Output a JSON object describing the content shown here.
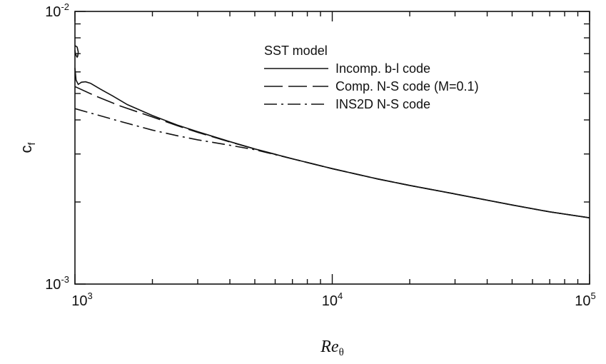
{
  "chart_data": {
    "type": "line",
    "title": "",
    "xlabel": {
      "main": "Re",
      "sub": "θ"
    },
    "ylabel": {
      "main": "c",
      "sub": "f"
    },
    "xscale": "log",
    "yscale": "log",
    "xlim": [
      1000,
      100000
    ],
    "ylim": [
      0.001,
      0.01
    ],
    "x_tick_labels": [
      {
        "value": 1000,
        "base": "10",
        "exp": "3"
      },
      {
        "value": 10000,
        "base": "10",
        "exp": "4"
      },
      {
        "value": 100000,
        "base": "10",
        "exp": "5"
      }
    ],
    "y_tick_labels": [
      {
        "value": 0.001,
        "base": "10",
        "exp": "-3"
      },
      {
        "value": 0.01,
        "base": "10",
        "exp": "-2"
      }
    ],
    "legend": {
      "title": "SST model",
      "placement": "top-center"
    },
    "series": [
      {
        "name": "Incomp. b-l code",
        "dash": "solid",
        "x": [
          1000,
          1010,
          1030,
          1060,
          1100,
          1150,
          1250,
          1400,
          1600,
          2000,
          2500,
          3000,
          4000,
          5000,
          7000,
          10000,
          15000,
          20000,
          30000,
          50000,
          70000,
          100000
        ],
        "y": [
          0.0062,
          0.0056,
          0.0054,
          0.0055,
          0.00552,
          0.00545,
          0.0052,
          0.0049,
          0.00455,
          0.00415,
          0.00383,
          0.00362,
          0.00333,
          0.00313,
          0.00288,
          0.00265,
          0.00243,
          0.0023,
          0.00214,
          0.00195,
          0.00184,
          0.00175
        ]
      },
      {
        "name": "Comp. N-S code (M=0.1)",
        "dash": "long-dash",
        "x": [
          1000,
          1200,
          1500,
          2000,
          2500,
          3000,
          4000,
          5000,
          7000,
          10000,
          15000,
          20000,
          30000,
          50000,
          70000,
          100000
        ],
        "y": [
          0.0053,
          0.0049,
          0.0045,
          0.0041,
          0.00381,
          0.0036,
          0.00332,
          0.00313,
          0.00288,
          0.00265,
          0.00243,
          0.0023,
          0.00214,
          0.00195,
          0.00184,
          0.00175
        ]
      },
      {
        "name": "INS2D N-S code",
        "dash": "dash-dot",
        "x": [
          1000,
          1500,
          2000,
          2500,
          3000,
          4000,
          5000,
          7000,
          10000,
          15000,
          20000,
          30000,
          50000,
          70000,
          100000
        ],
        "y": [
          0.0044,
          0.00395,
          0.00367,
          0.0035,
          0.00338,
          0.00323,
          0.00311,
          0.00288,
          0.00265,
          0.00243,
          0.0023,
          0.00214,
          0.00195,
          0.00184,
          0.00175
        ]
      },
      {
        "name": "",
        "dash": "solid",
        "x": [
          1000,
          1020,
          1030,
          1025,
          1020,
          1015,
          1010,
          1005,
          1000
        ],
        "y": [
          0.0075,
          0.0074,
          0.0071,
          0.00685,
          0.0068,
          0.00685,
          0.0069,
          0.007,
          0.0072
        ]
      }
    ]
  }
}
